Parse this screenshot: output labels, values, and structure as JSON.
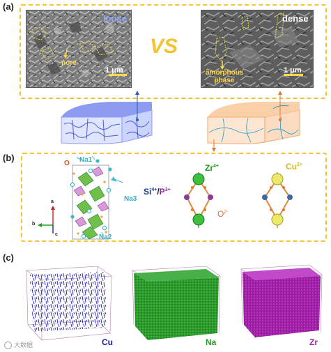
{
  "panels": {
    "a": {
      "label": "(a)"
    },
    "b": {
      "label": "(b)"
    },
    "c": {
      "label": "(c)"
    }
  },
  "sem_left": {
    "title": "loose",
    "annotation": "pore",
    "scale_bar": "1 μm",
    "title_color": "#8ea4ff"
  },
  "sem_right": {
    "title": "dense",
    "annotation_line1": "amorphous",
    "annotation_line2": "phase",
    "scale_bar": "1 μm",
    "title_color": "#ffffff"
  },
  "vs_text": "VS",
  "structure": {
    "o_label": "O",
    "na1_label": "Na1",
    "na2_label": "Na2",
    "na3_label": "Na3",
    "axis_a": "a",
    "axis_b": "b",
    "axis_c": "c"
  },
  "ring_left": {
    "zr_label": "Zr",
    "zr_charge": "4+",
    "si_label": "Si",
    "si_charge": "4+",
    "slash": "/",
    "p_label": "P",
    "p_charge": "3+",
    "o_label": "O",
    "o_charge": "2-"
  },
  "ring_right": {
    "cu_label": "Cu",
    "cu_charge": "2+"
  },
  "maps": [
    {
      "element": "Cu",
      "color": "#1a1aa8"
    },
    {
      "element": "Na",
      "color": "#2a9a2a"
    },
    {
      "element": "Zr",
      "color": "#a020a8"
    }
  ],
  "watermark": "大数据"
}
